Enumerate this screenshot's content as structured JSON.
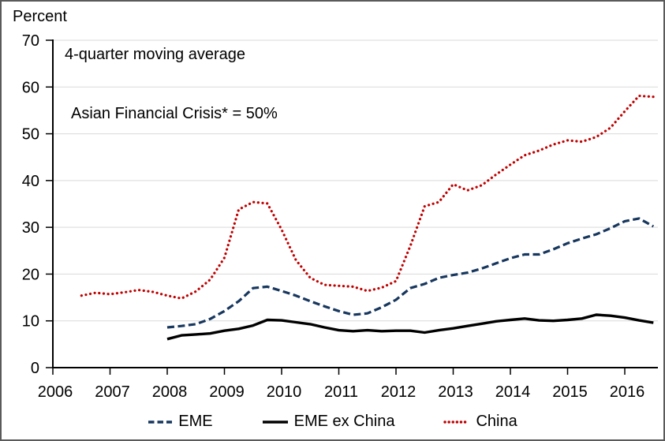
{
  "page": {
    "background": "#ffffff",
    "border_color": "#5a5a5a"
  },
  "chart_data": {
    "type": "line",
    "y_axis_title": "Percent",
    "annotations": [
      {
        "text": "4-quarter moving average"
      },
      {
        "text": "Asian Financial Crisis* = 50%"
      }
    ],
    "ylim": [
      0,
      70
    ],
    "y_tick_step": 10,
    "y_tick_labels": [
      "0",
      "10",
      "20",
      "30",
      "40",
      "50",
      "60",
      "70"
    ],
    "x_tick_labels": [
      "2006",
      "2007",
      "2008",
      "2009",
      "2010",
      "2011",
      "2012",
      "2013",
      "2014",
      "2015",
      "2016"
    ],
    "x_range": [
      2006,
      2016.6
    ],
    "grid": true,
    "gridline_color": "#d9d9d9",
    "axis_color": "#000000",
    "legend_position": "bottom",
    "series": [
      {
        "name": "EME",
        "color": "#17375E",
        "style": "dashed",
        "x": [
          2008.0,
          2008.25,
          2008.5,
          2008.75,
          2009.0,
          2009.25,
          2009.5,
          2009.75,
          2010.0,
          2010.25,
          2010.5,
          2010.75,
          2011.0,
          2011.25,
          2011.5,
          2011.75,
          2012.0,
          2012.25,
          2012.5,
          2012.75,
          2013.0,
          2013.25,
          2013.5,
          2013.75,
          2014.0,
          2014.25,
          2014.5,
          2014.75,
          2015.0,
          2015.25,
          2015.5,
          2015.75,
          2016.0,
          2016.25,
          2016.5
        ],
        "values": [
          8.6,
          8.9,
          9.3,
          10.4,
          12.1,
          14.2,
          17.0,
          17.3,
          16.4,
          15.4,
          14.2,
          13.1,
          12.1,
          11.3,
          11.6,
          12.9,
          14.5,
          17.0,
          17.9,
          19.2,
          19.8,
          20.3,
          21.2,
          22.3,
          23.4,
          24.2,
          24.2,
          25.3,
          26.6,
          27.6,
          28.5,
          29.8,
          31.3,
          31.9,
          30.2
        ]
      },
      {
        "name": "EME ex China",
        "color": "#000000",
        "style": "solid",
        "x": [
          2008.0,
          2008.25,
          2008.5,
          2008.75,
          2009.0,
          2009.25,
          2009.5,
          2009.75,
          2010.0,
          2010.25,
          2010.5,
          2010.75,
          2011.0,
          2011.25,
          2011.5,
          2011.75,
          2012.0,
          2012.25,
          2012.5,
          2012.75,
          2013.0,
          2013.25,
          2013.5,
          2013.75,
          2014.0,
          2014.25,
          2014.5,
          2014.75,
          2015.0,
          2015.25,
          2015.5,
          2015.75,
          2016.0,
          2016.25,
          2016.5
        ],
        "values": [
          6.1,
          6.9,
          7.1,
          7.3,
          7.9,
          8.3,
          9.0,
          10.2,
          10.1,
          9.7,
          9.3,
          8.6,
          8.0,
          7.8,
          8.0,
          7.8,
          7.9,
          7.9,
          7.5,
          8.0,
          8.4,
          8.9,
          9.4,
          9.9,
          10.2,
          10.5,
          10.1,
          10.0,
          10.2,
          10.5,
          11.3,
          11.1,
          10.7,
          10.1,
          9.6
        ]
      },
      {
        "name": "China",
        "color": "#C00000",
        "style": "dotted",
        "x": [
          2006.5,
          2006.75,
          2007.0,
          2007.25,
          2007.5,
          2007.75,
          2008.0,
          2008.25,
          2008.5,
          2008.75,
          2009.0,
          2009.25,
          2009.5,
          2009.75,
          2010.0,
          2010.25,
          2010.5,
          2010.75,
          2011.0,
          2011.25,
          2011.5,
          2011.75,
          2012.0,
          2012.25,
          2012.5,
          2012.75,
          2013.0,
          2013.25,
          2013.5,
          2013.75,
          2014.0,
          2014.25,
          2014.5,
          2014.75,
          2015.0,
          2015.25,
          2015.5,
          2015.75,
          2016.0,
          2016.25,
          2016.5
        ],
        "values": [
          15.4,
          16.0,
          15.7,
          16.1,
          16.6,
          16.2,
          15.4,
          14.8,
          16.3,
          18.8,
          23.5,
          33.8,
          35.4,
          35.1,
          29.5,
          23.0,
          19.2,
          17.7,
          17.5,
          17.3,
          16.4,
          17.1,
          18.5,
          26.0,
          34.5,
          35.4,
          39.2,
          37.9,
          39.0,
          41.3,
          43.4,
          45.4,
          46.4,
          47.7,
          48.6,
          48.3,
          49.3,
          51.3,
          54.8,
          58.1,
          57.9
        ]
      }
    ]
  }
}
